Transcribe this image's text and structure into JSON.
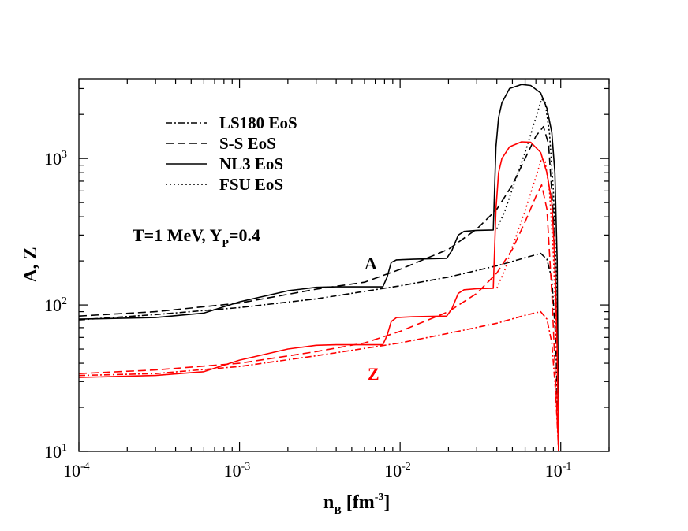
{
  "chart_data": {
    "type": "line",
    "title": "",
    "xlabel": "n_B [fm^-3]",
    "xlabel_main": "n",
    "xlabel_sub": "B",
    "xlabel_unit": "[fm",
    "xlabel_exp": "-3",
    "xlabel_close": "]",
    "ylabel": "A, Z",
    "x_scale": "log",
    "y_scale": "log",
    "xlim": [
      0.0001,
      0.2
    ],
    "ylim": [
      10,
      3500
    ],
    "grid": false,
    "legend_position": "top-left",
    "x_ticks": [
      {
        "base": "10",
        "exp": "-4"
      },
      {
        "base": "10",
        "exp": "-3"
      },
      {
        "base": "10",
        "exp": "-2"
      },
      {
        "base": "10",
        "exp": "-1"
      }
    ],
    "y_ticks": [
      {
        "base": "10",
        "exp": "1"
      },
      {
        "base": "10",
        "exp": "2"
      },
      {
        "base": "10",
        "exp": "3"
      }
    ],
    "annotations": {
      "conditions_main": "T=1 MeV, Y",
      "conditions_sub": "P",
      "conditions_tail": "=0.4",
      "a_label": "A",
      "z_label": "Z"
    },
    "legend": [
      {
        "label": "LS180 EoS",
        "dash": "dashdot"
      },
      {
        "label": "S-S EoS",
        "dash": "dashed"
      },
      {
        "label": "NL3 EoS",
        "dash": "solid"
      },
      {
        "label": "FSU EoS",
        "dash": "dotted"
      }
    ],
    "colors": {
      "A": "#000000",
      "Z": "#ff0000"
    },
    "series": [
      {
        "quantity": "A",
        "eos": "LS180 EoS",
        "dash": "dashdot",
        "color": "#000000",
        "points": [
          [
            0.0001,
            79
          ],
          [
            0.0003,
            86
          ],
          [
            0.001,
            96
          ],
          [
            0.003,
            110
          ],
          [
            0.01,
            135
          ],
          [
            0.02,
            155
          ],
          [
            0.04,
            185
          ],
          [
            0.06,
            210
          ],
          [
            0.075,
            225
          ],
          [
            0.082,
            205
          ],
          [
            0.088,
            150
          ],
          [
            0.093,
            60
          ],
          [
            0.097,
            10
          ]
        ]
      },
      {
        "quantity": "A",
        "eos": "S-S EoS",
        "dash": "dashed",
        "color": "#000000",
        "points": [
          [
            0.0001,
            84
          ],
          [
            0.0003,
            90
          ],
          [
            0.001,
            103
          ],
          [
            0.003,
            128
          ],
          [
            0.006,
            143
          ],
          [
            0.01,
            175
          ],
          [
            0.02,
            240
          ],
          [
            0.03,
            330
          ],
          [
            0.04,
            450
          ],
          [
            0.05,
            660
          ],
          [
            0.06,
            1000
          ],
          [
            0.07,
            1420
          ],
          [
            0.078,
            1650
          ],
          [
            0.084,
            1250
          ],
          [
            0.09,
            400
          ],
          [
            0.095,
            60
          ],
          [
            0.097,
            10
          ]
        ]
      },
      {
        "quantity": "A",
        "eos": "NL3 EoS",
        "dash": "solid",
        "color": "#000000",
        "points": [
          [
            0.0001,
            80
          ],
          [
            0.0003,
            82
          ],
          [
            0.0006,
            88
          ],
          [
            0.001,
            105
          ],
          [
            0.002,
            125
          ],
          [
            0.003,
            132
          ],
          [
            0.004,
            133
          ],
          [
            0.0078,
            133
          ],
          [
            0.0083,
            155
          ],
          [
            0.0088,
            195
          ],
          [
            0.0095,
            203
          ],
          [
            0.012,
            205
          ],
          [
            0.0195,
            208
          ],
          [
            0.021,
            235
          ],
          [
            0.023,
            300
          ],
          [
            0.025,
            318
          ],
          [
            0.03,
            323
          ],
          [
            0.038,
            325
          ],
          [
            0.0395,
            1200
          ],
          [
            0.041,
            1900
          ],
          [
            0.043,
            2400
          ],
          [
            0.048,
            3000
          ],
          [
            0.057,
            3200
          ],
          [
            0.065,
            3150
          ],
          [
            0.075,
            2800
          ],
          [
            0.082,
            2200
          ],
          [
            0.088,
            1500
          ],
          [
            0.092,
            800
          ],
          [
            0.095,
            200
          ],
          [
            0.097,
            10
          ]
        ]
      },
      {
        "quantity": "A",
        "eos": "FSU EoS",
        "dash": "dotted",
        "color": "#000000",
        "points": [
          [
            0.04,
            330
          ],
          [
            0.045,
            440
          ],
          [
            0.05,
            620
          ],
          [
            0.06,
            1100
          ],
          [
            0.07,
            1900
          ],
          [
            0.076,
            2550
          ],
          [
            0.08,
            2400
          ],
          [
            0.085,
            1500
          ],
          [
            0.09,
            600
          ],
          [
            0.095,
            100
          ],
          [
            0.097,
            10
          ]
        ]
      },
      {
        "quantity": "Z",
        "eos": "LS180 EoS",
        "dash": "dashdot",
        "color": "#ff0000",
        "points": [
          [
            0.0001,
            33
          ],
          [
            0.0003,
            34
          ],
          [
            0.001,
            38
          ],
          [
            0.003,
            45
          ],
          [
            0.01,
            55
          ],
          [
            0.02,
            64
          ],
          [
            0.04,
            75
          ],
          [
            0.06,
            85
          ],
          [
            0.075,
            90
          ],
          [
            0.082,
            80
          ],
          [
            0.088,
            55
          ],
          [
            0.093,
            25
          ],
          [
            0.097,
            10
          ]
        ]
      },
      {
        "quantity": "Z",
        "eos": "S-S EoS",
        "dash": "dashed",
        "color": "#ff0000",
        "points": [
          [
            0.0001,
            34
          ],
          [
            0.0003,
            36
          ],
          [
            0.001,
            40
          ],
          [
            0.003,
            48
          ],
          [
            0.006,
            55
          ],
          [
            0.01,
            66
          ],
          [
            0.02,
            90
          ],
          [
            0.03,
            120
          ],
          [
            0.04,
            165
          ],
          [
            0.05,
            240
          ],
          [
            0.06,
            370
          ],
          [
            0.07,
            550
          ],
          [
            0.076,
            660
          ],
          [
            0.082,
            450
          ],
          [
            0.088,
            120
          ],
          [
            0.093,
            30
          ],
          [
            0.097,
            10
          ]
        ]
      },
      {
        "quantity": "Z",
        "eos": "NL3 EoS",
        "dash": "solid",
        "color": "#ff0000",
        "points": [
          [
            0.0001,
            32
          ],
          [
            0.0003,
            33
          ],
          [
            0.0006,
            35
          ],
          [
            0.001,
            42
          ],
          [
            0.002,
            50
          ],
          [
            0.003,
            53
          ],
          [
            0.004,
            53.5
          ],
          [
            0.0078,
            53.5
          ],
          [
            0.0083,
            62
          ],
          [
            0.0088,
            77
          ],
          [
            0.0095,
            82
          ],
          [
            0.012,
            83
          ],
          [
            0.0195,
            84
          ],
          [
            0.021,
            94
          ],
          [
            0.023,
            120
          ],
          [
            0.025,
            127
          ],
          [
            0.03,
            129
          ],
          [
            0.038,
            130
          ],
          [
            0.0395,
            450
          ],
          [
            0.041,
            800
          ],
          [
            0.043,
            1000
          ],
          [
            0.048,
            1200
          ],
          [
            0.057,
            1300
          ],
          [
            0.065,
            1290
          ],
          [
            0.075,
            1100
          ],
          [
            0.082,
            800
          ],
          [
            0.088,
            500
          ],
          [
            0.092,
            200
          ],
          [
            0.095,
            50
          ],
          [
            0.097,
            10
          ]
        ]
      },
      {
        "quantity": "Z",
        "eos": "FSU EoS",
        "dash": "dotted",
        "color": "#ff0000",
        "points": [
          [
            0.04,
            130
          ],
          [
            0.045,
            175
          ],
          [
            0.05,
            250
          ],
          [
            0.06,
            440
          ],
          [
            0.07,
            750
          ],
          [
            0.076,
            1000
          ],
          [
            0.08,
            950
          ],
          [
            0.085,
            600
          ],
          [
            0.09,
            220
          ],
          [
            0.095,
            40
          ],
          [
            0.097,
            10
          ]
        ]
      }
    ]
  }
}
